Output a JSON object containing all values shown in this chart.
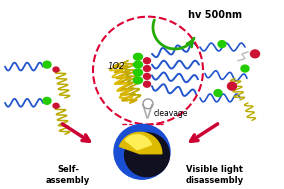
{
  "bg_color": "#ffffff",
  "hv_text": "hv 500nm",
  "o2_text": "1O2",
  "cleavage_text": "cleavage",
  "self_assembly_text": "Self-\nassembly",
  "visible_light_text": "Visible light\ndisassembly",
  "dashed_circle_color": "#dd0033",
  "blue_color": "#2255cc",
  "green_color": "#22cc00",
  "red_color": "#cc1133",
  "yellow_color": "#ddbb00",
  "pink_arrow_color": "#cc0033",
  "green_arrow_color": "#22aa00",
  "micelle_blue": "#1a3fcc",
  "micelle_black": "#101020",
  "micelle_yellow": "#eecc00",
  "micelle_yellow2": "#ffee55"
}
